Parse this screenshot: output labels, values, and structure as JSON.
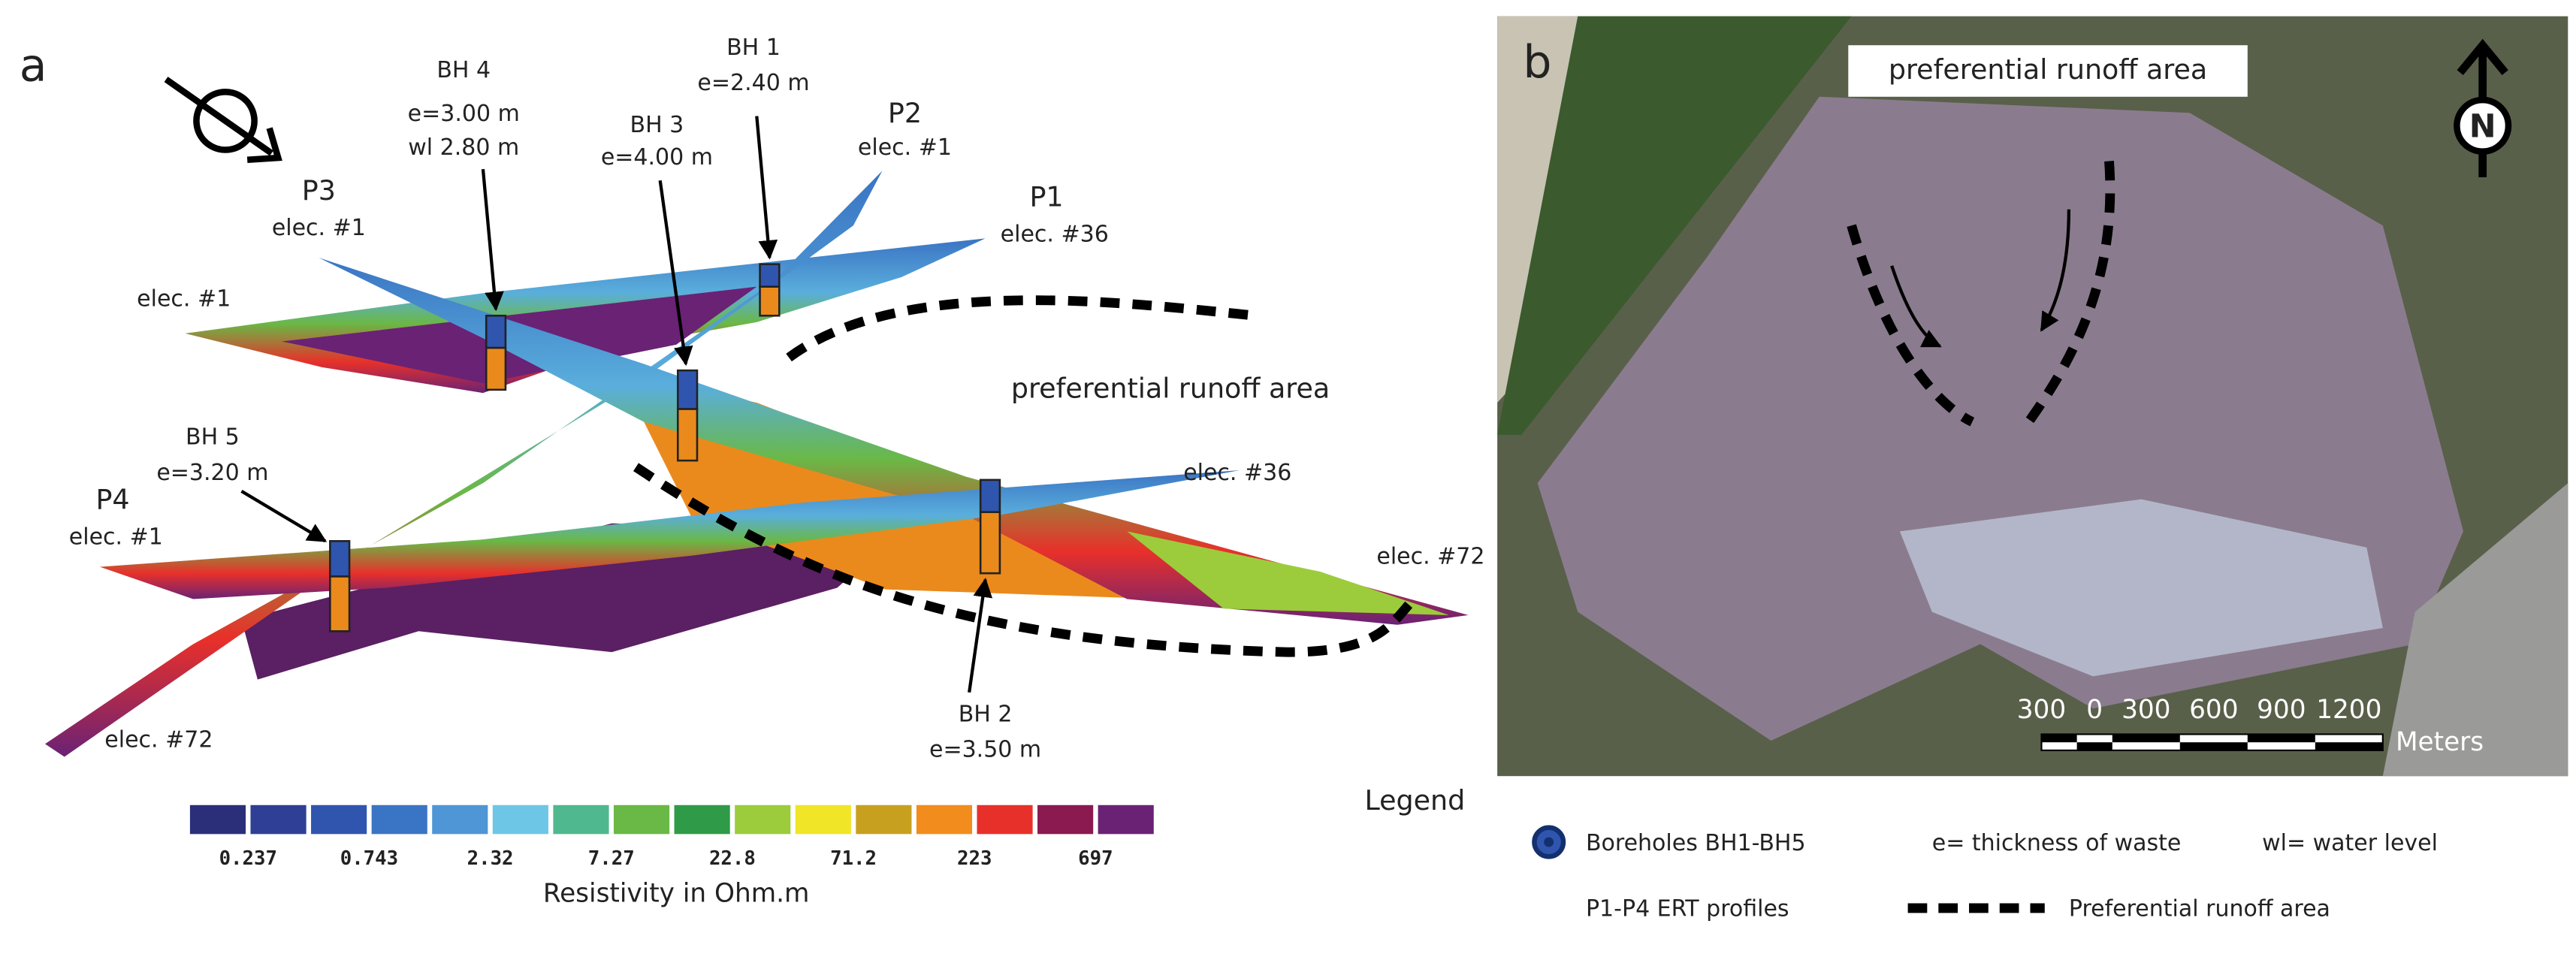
{
  "panel_a": {
    "label": "a",
    "boreholes": [
      {
        "name": "BH 4",
        "thickness": "e=3.00 m",
        "water_level": "wl 2.80 m"
      },
      {
        "name": "BH 3",
        "thickness": "e=4.00 m"
      },
      {
        "name": "BH 1",
        "thickness": "e=2.40 m"
      },
      {
        "name": "BH 5",
        "thickness": "e=3.20 m"
      },
      {
        "name": "BH 2",
        "thickness": "e=3.50 m"
      }
    ],
    "profiles": [
      {
        "name": "P2",
        "electrode": "elec. #1"
      },
      {
        "name": "P1",
        "electrode": "elec. #36"
      },
      {
        "name": "P3",
        "electrode": "elec. #1"
      },
      {
        "name": "P4",
        "electrode": "elec. #1"
      }
    ],
    "electrodes": [
      "elec. #1",
      "elec. #36",
      "elec. #72",
      "elec. #72"
    ],
    "runoff_label": "preferential runoff area"
  },
  "legend": {
    "title": "Legend",
    "colorbar": {
      "ticks": [
        "0.237",
        "0.743",
        "2.32",
        "7.27",
        "22.8",
        "71.2",
        "223",
        "697"
      ],
      "caption": "Resistivity in Ohm.m"
    },
    "items": [
      "Boreholes BH1-BH5",
      "e= thickness of waste",
      "wl= water level",
      "P1-P4 ERT profiles",
      "Preferential runoff area"
    ]
  },
  "panel_b": {
    "label": "b",
    "runoff_label": "preferential runoff area",
    "north": "N",
    "scale_bar": {
      "labels": [
        "300",
        "0",
        "300",
        "600",
        "900",
        "1200"
      ],
      "unit": "Meters"
    }
  }
}
